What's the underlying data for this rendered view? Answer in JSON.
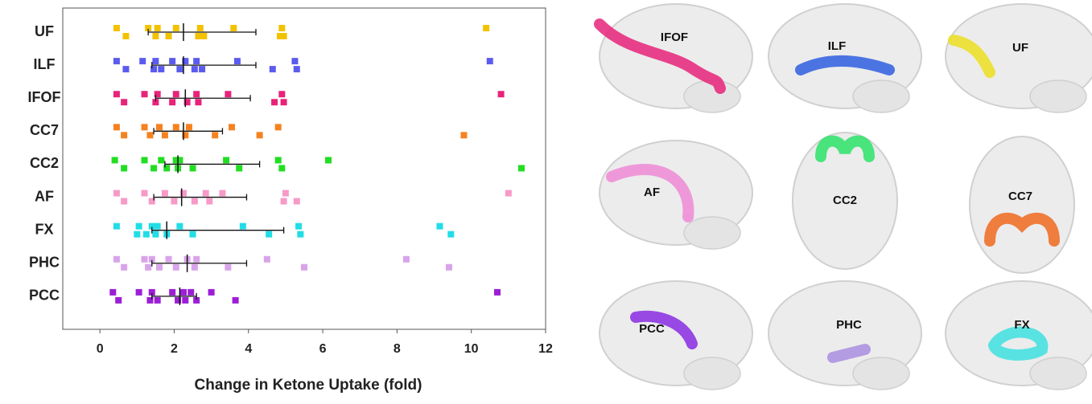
{
  "chart_data": {
    "type": "strip",
    "xlabel": "Change in Ketone Uptake (fold)",
    "xlim": [
      -1,
      12
    ],
    "xticks": [
      0,
      2,
      4,
      6,
      8,
      10,
      12
    ],
    "series": [
      {
        "name": "UF",
        "color": "#f2c200",
        "values": [
          0.45,
          0.7,
          1.3,
          1.5,
          1.55,
          1.85,
          2.05,
          2.65,
          2.7,
          2.8,
          3.6,
          4.85,
          4.9,
          4.95,
          10.4
        ],
        "mean": 2.25,
        "whisker": [
          1.3,
          4.2
        ]
      },
      {
        "name": "ILF",
        "color": "#5b5bf0",
        "values": [
          0.45,
          0.7,
          1.15,
          1.45,
          1.5,
          1.65,
          1.95,
          2.15,
          2.3,
          2.55,
          2.6,
          2.75,
          3.7,
          4.65,
          5.25,
          5.3,
          10.5
        ],
        "mean": 2.25,
        "whisker": [
          1.4,
          4.2
        ]
      },
      {
        "name": "IFOF",
        "color": "#e8237a",
        "values": [
          0.45,
          0.65,
          1.2,
          1.5,
          1.55,
          1.95,
          2.05,
          2.35,
          2.6,
          2.65,
          3.45,
          4.7,
          4.9,
          4.95,
          10.8
        ],
        "mean": 2.3,
        "whisker": [
          1.5,
          4.05
        ]
      },
      {
        "name": "CC7",
        "color": "#f58220",
        "values": [
          0.45,
          0.65,
          1.2,
          1.35,
          1.6,
          1.75,
          2.05,
          2.3,
          2.4,
          3.1,
          3.55,
          4.3,
          4.8,
          9.8
        ],
        "mean": 2.25,
        "whisker": [
          1.45,
          3.3
        ]
      },
      {
        "name": "CC2",
        "color": "#22dd22",
        "values": [
          0.4,
          0.65,
          1.2,
          1.45,
          1.65,
          1.8,
          2.05,
          2.1,
          2.15,
          2.5,
          3.4,
          3.75,
          4.8,
          4.9,
          6.15,
          11.35
        ],
        "mean": 2.1,
        "whisker": [
          1.75,
          4.3
        ]
      },
      {
        "name": "AF",
        "color": "#f79ac8",
        "values": [
          0.45,
          0.65,
          1.2,
          1.4,
          1.75,
          2.0,
          2.25,
          2.55,
          2.85,
          2.95,
          3.3,
          4.95,
          5.0,
          5.3,
          11.0
        ],
        "mean": 2.2,
        "whisker": [
          1.45,
          3.95
        ]
      },
      {
        "name": "FX",
        "color": "#22dde6",
        "values": [
          0.45,
          1.0,
          1.05,
          1.25,
          1.4,
          1.5,
          1.55,
          1.8,
          2.15,
          2.5,
          3.85,
          4.55,
          5.35,
          5.4,
          9.15,
          9.45
        ],
        "mean": 1.8,
        "whisker": [
          1.4,
          4.95
        ]
      },
      {
        "name": "PHC",
        "color": "#d9a3ea",
        "values": [
          0.45,
          0.65,
          1.2,
          1.3,
          1.4,
          1.6,
          1.85,
          2.05,
          2.35,
          2.55,
          2.6,
          3.45,
          4.5,
          5.5,
          8.25,
          9.4
        ],
        "mean": 2.35,
        "whisker": [
          1.4,
          3.95
        ]
      },
      {
        "name": "PCC",
        "color": "#9b1fd6",
        "values": [
          0.35,
          0.5,
          1.05,
          1.35,
          1.4,
          1.55,
          1.95,
          2.1,
          2.25,
          2.3,
          2.45,
          2.6,
          3.0,
          3.65,
          10.7
        ],
        "mean": 2.15,
        "whisker": [
          1.4,
          2.6
        ]
      }
    ]
  },
  "brain_panels": [
    {
      "label": "IFOF",
      "color": "#e8237a"
    },
    {
      "label": "ILF",
      "color": "#2f5fe0"
    },
    {
      "label": "UF",
      "color": "#ecdf20"
    },
    {
      "label": "AF",
      "color": "#ee8ad6"
    },
    {
      "label": "CC2",
      "color": "#2ee36a"
    },
    {
      "label": "CC7",
      "color": "#f06a20"
    },
    {
      "label": "PCC",
      "color": "#8a2be2"
    },
    {
      "label": "PHC",
      "color": "#a98ee0"
    },
    {
      "label": "FX",
      "color": "#3fe0e0"
    }
  ]
}
